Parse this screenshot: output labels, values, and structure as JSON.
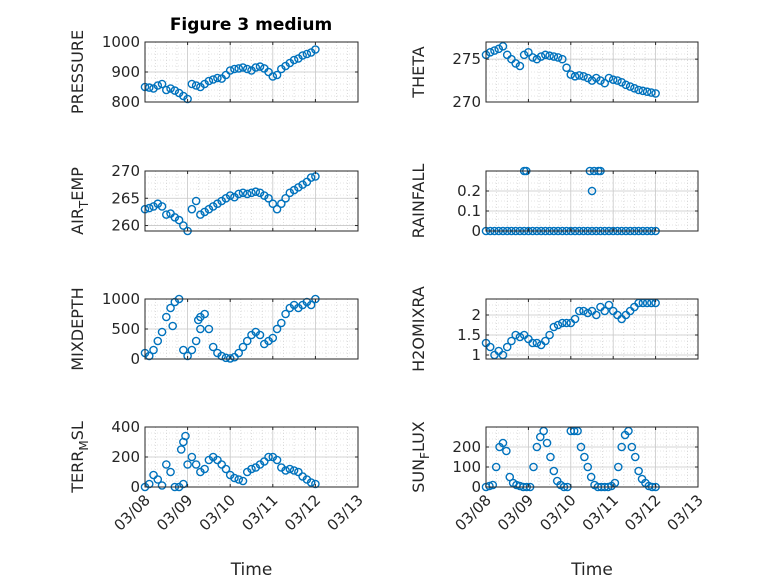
{
  "figure": {
    "title": "Figure 3 medium",
    "colors": {
      "marker": "#0072BD",
      "axis": "#262626",
      "grid": "#c8c8c8"
    }
  },
  "chart_data": [
    {
      "type": "scatter",
      "ylabel": "PRESSURE",
      "xlabel": "",
      "ylim": [
        800,
        1000
      ],
      "yticks": [
        {
          "v": 800,
          "label": "800"
        },
        {
          "v": 900,
          "label": "900"
        },
        {
          "v": 1000,
          "label": "1000"
        }
      ],
      "xticks": [],
      "grid": true,
      "x": [
        0,
        0.1,
        0.2,
        0.3,
        0.4,
        0.5,
        0.6,
        0.7,
        0.8,
        0.9,
        1.0,
        1.1,
        1.2,
        1.3,
        1.4,
        1.5,
        1.6,
        1.7,
        1.8,
        1.9,
        2.0,
        2.1,
        2.2,
        2.3,
        2.4,
        2.5,
        2.6,
        2.7,
        2.8,
        2.9,
        3.0,
        3.1,
        3.2,
        3.3,
        3.4,
        3.5,
        3.6,
        3.7,
        3.8,
        3.9,
        4.0
      ],
      "y": [
        850,
        848,
        845,
        855,
        860,
        840,
        845,
        838,
        830,
        820,
        810,
        860,
        855,
        850,
        860,
        870,
        875,
        880,
        878,
        890,
        905,
        910,
        912,
        915,
        910,
        905,
        915,
        918,
        912,
        900,
        885,
        890,
        910,
        920,
        930,
        940,
        945,
        955,
        960,
        965,
        975
      ]
    },
    {
      "type": "scatter",
      "ylabel": "THETA",
      "xlabel": "",
      "ylim": [
        270,
        277
      ],
      "yticks": [
        {
          "v": 270,
          "label": "270"
        },
        {
          "v": 275,
          "label": "275"
        }
      ],
      "xticks": [],
      "grid": true,
      "x": [
        0,
        0.1,
        0.2,
        0.3,
        0.4,
        0.5,
        0.6,
        0.7,
        0.8,
        0.9,
        1.0,
        1.1,
        1.2,
        1.3,
        1.4,
        1.5,
        1.6,
        1.7,
        1.8,
        1.9,
        2.0,
        2.1,
        2.2,
        2.3,
        2.4,
        2.5,
        2.6,
        2.7,
        2.8,
        2.9,
        3.0,
        3.1,
        3.2,
        3.3,
        3.4,
        3.5,
        3.6,
        3.7,
        3.8,
        3.9,
        4.0
      ],
      "y": [
        275.5,
        275.8,
        276.0,
        276.2,
        276.5,
        275.5,
        275.0,
        274.5,
        274.2,
        275.5,
        275.8,
        275.2,
        275.0,
        275.3,
        275.5,
        275.4,
        275.3,
        275.2,
        275.0,
        274.0,
        273.2,
        273.0,
        273.1,
        273.0,
        272.8,
        272.5,
        272.8,
        272.5,
        272.2,
        272.8,
        272.6,
        272.5,
        272.3,
        272.0,
        271.8,
        271.6,
        271.4,
        271.3,
        271.2,
        271.1,
        271.0
      ]
    },
    {
      "type": "scatter",
      "ylabel": "AIR",
      "ylabel_sub": "T",
      "ylabel_rest": "EMP",
      "xlabel": "",
      "ylim": [
        259,
        270
      ],
      "yticks": [
        {
          "v": 260,
          "label": "260"
        },
        {
          "v": 265,
          "label": "265"
        },
        {
          "v": 270,
          "label": "270"
        }
      ],
      "xticks": [],
      "grid": true,
      "x": [
        0,
        0.1,
        0.2,
        0.3,
        0.4,
        0.5,
        0.6,
        0.7,
        0.8,
        0.9,
        1.0,
        1.1,
        1.2,
        1.3,
        1.4,
        1.5,
        1.6,
        1.7,
        1.8,
        1.9,
        2.0,
        2.1,
        2.2,
        2.3,
        2.4,
        2.5,
        2.6,
        2.7,
        2.8,
        2.9,
        3.0,
        3.1,
        3.2,
        3.3,
        3.4,
        3.5,
        3.6,
        3.7,
        3.8,
        3.9,
        4.0
      ],
      "y": [
        263,
        263.2,
        263.5,
        264,
        263.5,
        262,
        262.2,
        261.5,
        261,
        260,
        259,
        263,
        264.5,
        262,
        262.5,
        263,
        263.5,
        264,
        264.5,
        265,
        265.5,
        265.2,
        265.8,
        266,
        265.8,
        266,
        266.2,
        266,
        265.5,
        265,
        264,
        263,
        264,
        265,
        266,
        266.5,
        267,
        267.5,
        268,
        268.8,
        269
      ]
    },
    {
      "type": "scatter",
      "ylabel": "RAINFALL",
      "xlabel": "",
      "ylim": [
        0,
        0.3
      ],
      "yticks": [
        {
          "v": 0,
          "label": "0"
        },
        {
          "v": 0.1,
          "label": "0.1"
        },
        {
          "v": 0.2,
          "label": "0.2"
        }
      ],
      "xticks": [],
      "grid": true,
      "x": [
        0,
        0.1,
        0.2,
        0.3,
        0.4,
        0.5,
        0.6,
        0.7,
        0.8,
        0.9,
        1.0,
        1.1,
        1.2,
        1.3,
        1.4,
        1.5,
        1.6,
        1.7,
        1.8,
        1.9,
        2.0,
        2.1,
        2.2,
        2.3,
        2.4,
        2.5,
        2.6,
        2.7,
        2.8,
        2.9,
        3.0,
        3.1,
        3.2,
        3.3,
        3.4,
        3.5,
        3.6,
        3.7,
        3.8,
        3.9,
        4.0,
        0.9,
        0.95,
        2.45,
        2.5,
        2.55,
        2.65,
        2.7
      ],
      "y": [
        0,
        0,
        0,
        0,
        0,
        0,
        0,
        0,
        0,
        0,
        0,
        0,
        0,
        0,
        0,
        0,
        0,
        0,
        0,
        0,
        0,
        0,
        0,
        0,
        0,
        0,
        0,
        0,
        0,
        0,
        0,
        0,
        0,
        0,
        0,
        0,
        0,
        0,
        0,
        0,
        0,
        0.3,
        0.3,
        0.3,
        0.2,
        0.3,
        0.3,
        0.3
      ]
    },
    {
      "type": "scatter",
      "ylabel": "MIXDEPTH",
      "xlabel": "",
      "ylim": [
        0,
        1000
      ],
      "yticks": [
        {
          "v": 0,
          "label": "0"
        },
        {
          "v": 500,
          "label": "500"
        },
        {
          "v": 1000,
          "label": "1000"
        }
      ],
      "xticks": [],
      "grid": true,
      "x": [
        0,
        0.1,
        0.2,
        0.3,
        0.4,
        0.5,
        0.6,
        0.7,
        0.8,
        0.9,
        1.0,
        1.1,
        1.2,
        1.3,
        1.4,
        1.5,
        1.6,
        1.7,
        1.8,
        1.9,
        2.0,
        2.1,
        2.2,
        2.3,
        2.4,
        2.5,
        2.6,
        2.7,
        2.8,
        2.9,
        3.0,
        3.1,
        3.2,
        3.3,
        3.4,
        3.5,
        3.6,
        3.7,
        3.8,
        3.9,
        4.0,
        0.65,
        1.25,
        1.3
      ],
      "y": [
        100,
        50,
        150,
        300,
        450,
        700,
        850,
        950,
        1000,
        150,
        50,
        150,
        300,
        500,
        750,
        500,
        200,
        100,
        50,
        20,
        10,
        30,
        100,
        200,
        300,
        400,
        450,
        400,
        250,
        300,
        350,
        500,
        600,
        750,
        850,
        900,
        850,
        900,
        950,
        900,
        1000,
        550,
        650,
        700
      ]
    },
    {
      "type": "scatter",
      "ylabel": "H2OMIXRA",
      "xlabel": "",
      "ylim": [
        0.9,
        2.4
      ],
      "yticks": [
        {
          "v": 1,
          "label": "1"
        },
        {
          "v": 1.5,
          "label": "1.5"
        },
        {
          "v": 2,
          "label": "2"
        }
      ],
      "xticks": [],
      "grid": true,
      "x": [
        0,
        0.1,
        0.2,
        0.3,
        0.4,
        0.5,
        0.6,
        0.7,
        0.8,
        0.9,
        1.0,
        1.1,
        1.2,
        1.3,
        1.4,
        1.5,
        1.6,
        1.7,
        1.8,
        1.9,
        2.0,
        2.1,
        2.2,
        2.3,
        2.4,
        2.5,
        2.6,
        2.7,
        2.8,
        2.9,
        3.0,
        3.1,
        3.2,
        3.3,
        3.4,
        3.5,
        3.6,
        3.7,
        3.8,
        3.9,
        4.0
      ],
      "y": [
        1.3,
        1.2,
        1.0,
        1.1,
        1.0,
        1.2,
        1.35,
        1.5,
        1.45,
        1.5,
        1.4,
        1.3,
        1.3,
        1.25,
        1.35,
        1.5,
        1.7,
        1.75,
        1.8,
        1.8,
        1.8,
        1.9,
        2.1,
        2.1,
        2.05,
        2.1,
        2.0,
        2.2,
        2.1,
        2.25,
        2.1,
        2.0,
        1.9,
        2.0,
        2.1,
        2.2,
        2.3,
        2.3,
        2.3,
        2.3,
        2.3
      ]
    },
    {
      "type": "scatter",
      "ylabel": "TERR",
      "ylabel_sub": "M",
      "ylabel_rest": "SL",
      "xlabel": "Time",
      "ylim": [
        0,
        400
      ],
      "yticks": [
        {
          "v": 0,
          "label": "0"
        },
        {
          "v": 200,
          "label": "200"
        },
        {
          "v": 400,
          "label": "400"
        }
      ],
      "xlim": [
        0,
        5
      ],
      "xticks": [
        {
          "v": 0,
          "label": "03/08"
        },
        {
          "v": 1,
          "label": "03/09"
        },
        {
          "v": 2,
          "label": "03/10"
        },
        {
          "v": 3,
          "label": "03/11"
        },
        {
          "v": 4,
          "label": "03/12"
        },
        {
          "v": 5,
          "label": "03/13"
        }
      ],
      "grid": true,
      "x": [
        0,
        0.1,
        0.2,
        0.3,
        0.4,
        0.5,
        0.6,
        0.7,
        0.8,
        0.9,
        1.0,
        1.1,
        1.2,
        1.3,
        1.4,
        1.5,
        1.6,
        1.7,
        1.8,
        1.9,
        2.0,
        2.1,
        2.2,
        2.3,
        2.4,
        2.5,
        2.6,
        2.7,
        2.8,
        2.9,
        3.0,
        3.1,
        3.2,
        3.3,
        3.4,
        3.5,
        3.6,
        3.7,
        3.8,
        3.9,
        4.0,
        0.85,
        0.9,
        0.95
      ],
      "y": [
        0,
        20,
        80,
        50,
        10,
        150,
        100,
        0,
        0,
        20,
        150,
        200,
        150,
        100,
        120,
        180,
        200,
        180,
        150,
        120,
        80,
        60,
        50,
        40,
        100,
        120,
        130,
        150,
        170,
        200,
        200,
        180,
        130,
        110,
        120,
        110,
        100,
        70,
        50,
        30,
        20,
        250,
        300,
        340
      ]
    },
    {
      "type": "scatter",
      "ylabel": "SUN",
      "ylabel_sub": "F",
      "ylabel_rest": "LUX",
      "xlabel": "Time",
      "ylim": [
        0,
        300
      ],
      "yticks": [
        {
          "v": 0,
          "label": "0"
        },
        {
          "v": 100,
          "label": "100"
        },
        {
          "v": 200,
          "label": "200"
        }
      ],
      "xlim": [
        0,
        5
      ],
      "xticks": [
        {
          "v": 0,
          "label": "03/08"
        },
        {
          "v": 1,
          "label": "03/09"
        },
        {
          "v": 2,
          "label": "03/10"
        },
        {
          "v": 3,
          "label": "03/11"
        },
        {
          "v": 4,
          "label": "03/12"
        },
        {
          "v": 5,
          "label": "03/13"
        }
      ],
      "grid": true,
      "x": [
        0,
        0.08,
        0.16,
        0.24,
        0.32,
        0.4,
        0.48,
        0.56,
        0.64,
        0.72,
        0.8,
        0.88,
        0.96,
        1.04,
        1.12,
        1.2,
        1.28,
        1.36,
        1.44,
        1.52,
        1.6,
        1.68,
        1.76,
        1.84,
        1.92,
        2.0,
        2.08,
        2.16,
        2.24,
        2.32,
        2.4,
        2.48,
        2.56,
        2.64,
        2.72,
        2.8,
        2.88,
        2.96,
        3.04,
        3.12,
        3.2,
        3.28,
        3.36,
        3.44,
        3.52,
        3.6,
        3.68,
        3.76,
        3.84,
        3.92,
        4.0
      ],
      "y": [
        0,
        5,
        10,
        100,
        200,
        220,
        180,
        50,
        20,
        10,
        5,
        0,
        0,
        0,
        100,
        200,
        250,
        280,
        220,
        150,
        80,
        30,
        10,
        0,
        0,
        280,
        280,
        280,
        200,
        150,
        100,
        50,
        10,
        0,
        0,
        0,
        0,
        5,
        20,
        100,
        200,
        260,
        280,
        200,
        150,
        80,
        40,
        20,
        5,
        0,
        0
      ]
    }
  ]
}
